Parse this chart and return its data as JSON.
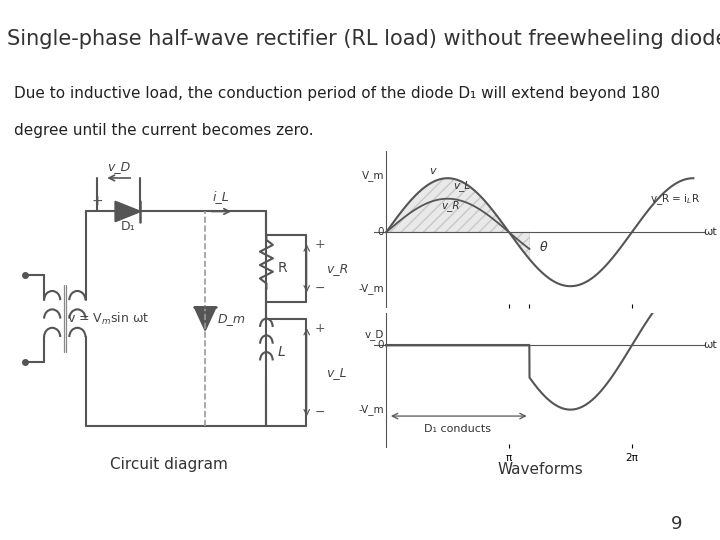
{
  "title": "Single-phase half-wave rectifier (RL load) without freewheeling diode",
  "title_bg": "#c8d400",
  "body_bg": "#ffffff",
  "description_line1": "Due to inductive load, the conduction period of the diode D₁ will extend beyond 180",
  "description_line2": "degree until the current becomes zero.",
  "circuit_label": "Circuit diagram",
  "waveform_label": "Waveforms",
  "page_number": "9",
  "title_fontsize": 15,
  "body_fontsize": 11
}
